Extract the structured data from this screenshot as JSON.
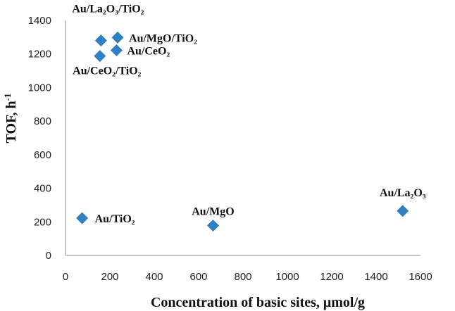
{
  "chart_data": {
    "type": "scatter",
    "xlabel": "Concentration of basic sites, μmol/g",
    "ylabel_main": "TOF, h",
    "ylabel_sup": "-1",
    "xlim": [
      0,
      1600
    ],
    "ylim": [
      0,
      1400
    ],
    "xticks": [
      "0",
      "200",
      "400",
      "600",
      "800",
      "1000",
      "1200",
      "1400",
      "1600"
    ],
    "yticks": [
      "0",
      "200",
      "400",
      "600",
      "800",
      "1000",
      "1200",
      "1400"
    ],
    "grid": false,
    "marker_color": "#2f80c4",
    "points": [
      {
        "label": "Au/TiO₂",
        "x": 75,
        "y": 222
      },
      {
        "label": "Au/MgO",
        "x": 665,
        "y": 178
      },
      {
        "label": "Au/La₂O₃",
        "x": 1520,
        "y": 265
      },
      {
        "label": "Au/La₂O₃/TiO₂",
        "x": 160,
        "y": 1280
      },
      {
        "label": "Au/MgO/TiO₂",
        "x": 235,
        "y": 1298
      },
      {
        "label": "Au/CeO₂",
        "x": 230,
        "y": 1222
      },
      {
        "label": "Au/CeO₂/TiO₂",
        "x": 155,
        "y": 1188
      }
    ]
  }
}
